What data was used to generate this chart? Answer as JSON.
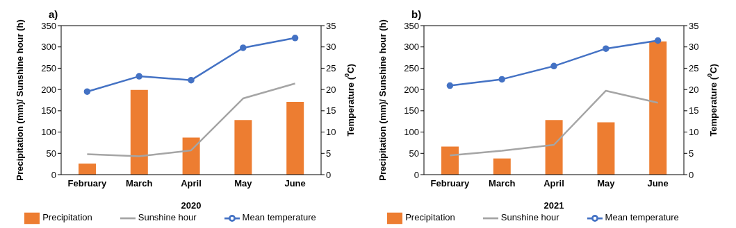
{
  "chart_data": [
    {
      "type": "bar",
      "title": "a)",
      "xlabel": "2020",
      "ylabel": "Precipitation (mm)/ Sunshine hour (h)",
      "y2label": "Temperature ($^{0}$C)",
      "categories": [
        "February",
        "March",
        "April",
        "May",
        "June"
      ],
      "series": [
        {
          "name": "Precipitation",
          "color": "#ed7d31",
          "values": [
            26,
            199,
            87,
            128,
            171
          ]
        },
        {
          "name": "Sunshine hour",
          "type": "line",
          "color": "#a5a5a5",
          "marker": "none",
          "values": [
            48,
            43,
            57,
            179,
            214
          ]
        },
        {
          "name": "Mean temperature",
          "type": "line",
          "color": "#4472c4",
          "marker": "circle",
          "axis": "y2",
          "values": [
            19.5,
            23.1,
            22.2,
            29.8,
            32.1
          ]
        }
      ],
      "ylim": [
        0,
        350
      ],
      "yticks": [
        0,
        50,
        100,
        150,
        200,
        250,
        300,
        350
      ],
      "y2lim": [
        0,
        35
      ],
      "y2ticks": [
        0,
        5,
        10,
        15,
        20,
        25,
        30,
        35
      ],
      "grid": false,
      "legend": "bottom",
      "line_style": "solid"
    },
    {
      "type": "bar",
      "title": "b)",
      "xlabel": "2021",
      "ylabel": "Precipitation (mm)/ Sunshine hour (h)",
      "y2label": "Temperature ($^{0}$C)",
      "categories": [
        "February",
        "March",
        "April",
        "May",
        "June"
      ],
      "series": [
        {
          "name": "Precipitation",
          "color": "#ed7d31",
          "values": [
            66,
            38,
            128,
            123,
            313
          ]
        },
        {
          "name": "Sunshine hour",
          "type": "line",
          "color": "#a5a5a5",
          "marker": "none",
          "values": [
            45,
            56,
            70,
            197,
            169
          ]
        },
        {
          "name": "Mean temperature",
          "type": "line",
          "color": "#4472c4",
          "marker": "circle",
          "axis": "y2",
          "values": [
            20.9,
            22.4,
            25.5,
            29.6,
            31.5
          ]
        }
      ],
      "ylim": [
        0,
        350
      ],
      "yticks": [
        0,
        50,
        100,
        150,
        200,
        250,
        300,
        350
      ],
      "y2lim": [
        0,
        35
      ],
      "y2ticks": [
        0,
        5,
        10,
        15,
        20,
        25,
        30,
        35
      ],
      "grid": false,
      "legend": "bottom",
      "line_style": "solid"
    }
  ]
}
